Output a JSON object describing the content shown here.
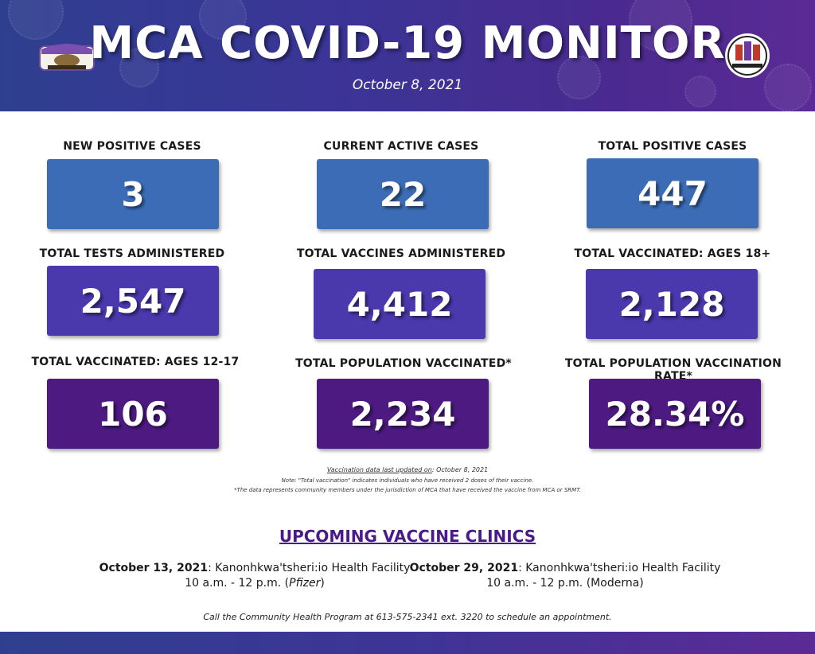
{
  "header": {
    "title": "MCA COVID-19 MONITOR",
    "date": "October 8, 2021",
    "logo_left": "mohawk-council-logo",
    "logo_right": "community-logo"
  },
  "colors": {
    "header_start": "#2f3f8f",
    "header_end": "#5b2a95",
    "row1_box": "#3c6cb6",
    "row2_box": "#4a38ad",
    "row3_box": "#4d1a82",
    "clinic_title": "#4a1a8a"
  },
  "stats": [
    {
      "label": "NEW POSITIVE CASES",
      "value": "3"
    },
    {
      "label": "CURRENT ACTIVE CASES",
      "value": "22"
    },
    {
      "label": "TOTAL POSITIVE CASES",
      "value": "447"
    },
    {
      "label": "TOTAL TESTS ADMINISTERED",
      "value": "2,547"
    },
    {
      "label": "TOTAL VACCINES ADMINISTERED",
      "value": "4,412"
    },
    {
      "label": "TOTAL VACCINATED: AGES 18+",
      "value": "2,128"
    },
    {
      "label": "TOTAL VACCINATED: AGES 12-17",
      "value": "106"
    },
    {
      "label": "TOTAL POPULATION VACCINATED*",
      "value": "2,234"
    },
    {
      "label": "TOTAL POPULATION VACCINATION RATE*",
      "value": "28.34%"
    }
  ],
  "notes": {
    "updated_label": "Vaccination data last updated on",
    "updated_date": ": October 8, 2021",
    "note1": "Note: \"Total vaccination\" indicates individuals who have received 2 doses of their vaccine.",
    "note2": "*The data represents community members under the jurisdiction of MCA that have received the vaccine from MCA or SRMT."
  },
  "clinics": {
    "title": "UPCOMING VACCINE CLINICS",
    "items": [
      {
        "date": "October 13, 2021",
        "location": ": Kanonhkwa'tsheri:io Health Facility",
        "time": "10 a.m. - 12 p.m. (",
        "vaccine": "Pfizer",
        "close": ")"
      },
      {
        "date": "October 29, 2021",
        "location": ": Kanonhkwa'tsheri:io Health Facility",
        "time": "10 a.m. - 12 p.m. (",
        "vaccine": "Moderna",
        "close": ")"
      }
    ],
    "call": "Call the Community Health Program at 613-575-2341 ext. 3220 to schedule an appointment."
  }
}
